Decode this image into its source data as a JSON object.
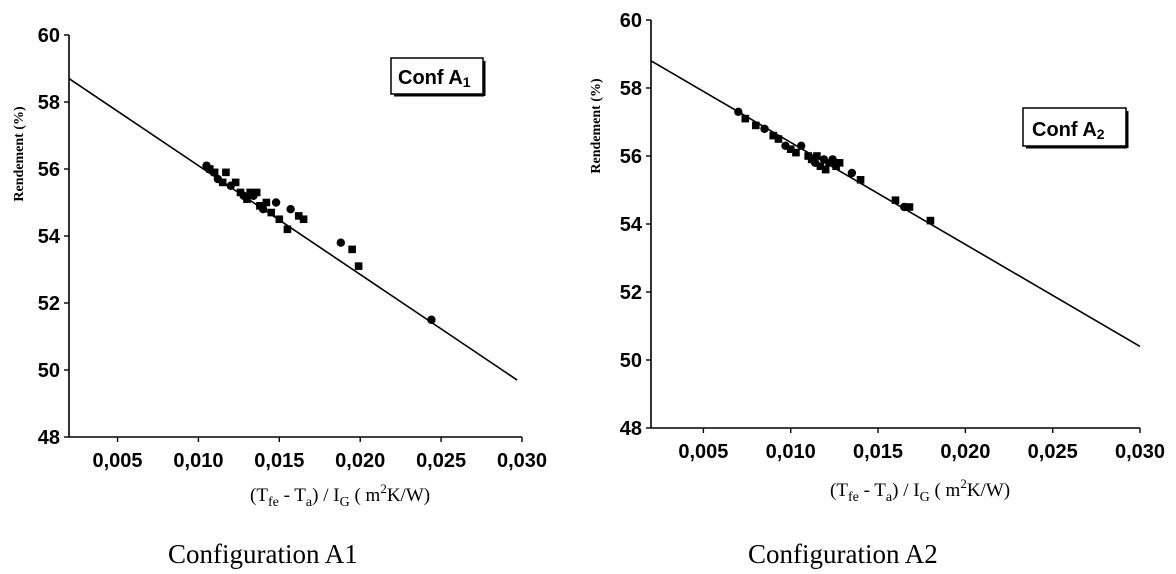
{
  "chart_data": [
    {
      "type": "scatter",
      "caption": "Configuration A1",
      "legend_box": {
        "prefix": "Conf A",
        "sub": "1"
      },
      "ylabel": "Rendement (%)",
      "xlabel": {
        "p1": "(T",
        "s1": "fe",
        "p2": " - T",
        "s2": "a",
        "p3": ") / I",
        "s3": "G",
        "p4": " ( m",
        "sup": "2",
        "p5": "K/W)"
      },
      "xlim": [
        0.002,
        0.03
      ],
      "ylim": [
        48,
        60
      ],
      "x_ticks": [
        {
          "v": 0.005,
          "label": "0,005"
        },
        {
          "v": 0.01,
          "label": "0,010"
        },
        {
          "v": 0.015,
          "label": "0,015"
        },
        {
          "v": 0.02,
          "label": "0,020"
        },
        {
          "v": 0.025,
          "label": "0,025"
        },
        {
          "v": 0.03,
          "label": "0,030"
        }
      ],
      "y_ticks": [
        {
          "v": 48,
          "label": "48"
        },
        {
          "v": 50,
          "label": "50"
        },
        {
          "v": 52,
          "label": "52"
        },
        {
          "v": 54,
          "label": "54"
        },
        {
          "v": 56,
          "label": "56"
        },
        {
          "v": 58,
          "label": "58"
        },
        {
          "v": 60,
          "label": "60"
        }
      ],
      "fit_line": {
        "x": [
          0.002,
          0.0297
        ],
        "y": [
          58.7,
          49.7
        ]
      },
      "points": [
        [
          0.0105,
          56.1
        ],
        [
          0.0107,
          56.0
        ],
        [
          0.011,
          55.9
        ],
        [
          0.0112,
          55.7
        ],
        [
          0.0115,
          55.6
        ],
        [
          0.0117,
          55.9
        ],
        [
          0.012,
          55.5
        ],
        [
          0.0123,
          55.6
        ],
        [
          0.0126,
          55.3
        ],
        [
          0.0128,
          55.2
        ],
        [
          0.013,
          55.1
        ],
        [
          0.0132,
          55.3
        ],
        [
          0.0134,
          55.2
        ],
        [
          0.0136,
          55.3
        ],
        [
          0.0138,
          54.9
        ],
        [
          0.014,
          54.8
        ],
        [
          0.0142,
          55.0
        ],
        [
          0.0145,
          54.7
        ],
        [
          0.0148,
          55.0
        ],
        [
          0.015,
          54.5
        ],
        [
          0.0155,
          54.2
        ],
        [
          0.0157,
          54.8
        ],
        [
          0.0162,
          54.6
        ],
        [
          0.0165,
          54.5
        ],
        [
          0.0188,
          53.8
        ],
        [
          0.0195,
          53.6
        ],
        [
          0.0199,
          53.1
        ],
        [
          0.0244,
          51.5
        ]
      ]
    },
    {
      "type": "scatter",
      "caption": "Configuration A2",
      "legend_box": {
        "prefix": "Conf A",
        "sub": "2"
      },
      "ylabel": "Rendement (%)",
      "xlabel": {
        "p1": "(T",
        "s1": "fe",
        "p2": " - T",
        "s2": "a",
        "p3": ") / I",
        "s3": "G",
        "p4": " ( m",
        "sup": "2",
        "p5": "K/W)"
      },
      "xlim": [
        0.002,
        0.03
      ],
      "ylim": [
        48,
        60
      ],
      "x_ticks": [
        {
          "v": 0.005,
          "label": "0,005"
        },
        {
          "v": 0.01,
          "label": "0,010"
        },
        {
          "v": 0.015,
          "label": "0,015"
        },
        {
          "v": 0.02,
          "label": "0,020"
        },
        {
          "v": 0.025,
          "label": "0,025"
        },
        {
          "v": 0.03,
          "label": "0,030"
        }
      ],
      "y_ticks": [
        {
          "v": 48,
          "label": "48"
        },
        {
          "v": 50,
          "label": "50"
        },
        {
          "v": 52,
          "label": "52"
        },
        {
          "v": 54,
          "label": "54"
        },
        {
          "v": 56,
          "label": "56"
        },
        {
          "v": 58,
          "label": "58"
        },
        {
          "v": 60,
          "label": "60"
        }
      ],
      "fit_line": {
        "x": [
          0.002,
          0.03
        ],
        "y": [
          58.8,
          50.4
        ]
      },
      "points": [
        [
          0.007,
          57.3
        ],
        [
          0.0074,
          57.1
        ],
        [
          0.008,
          56.9
        ],
        [
          0.0085,
          56.8
        ],
        [
          0.009,
          56.6
        ],
        [
          0.0093,
          56.5
        ],
        [
          0.0097,
          56.3
        ],
        [
          0.01,
          56.2
        ],
        [
          0.0103,
          56.1
        ],
        [
          0.0106,
          56.3
        ],
        [
          0.011,
          56.0
        ],
        [
          0.0112,
          55.9
        ],
        [
          0.0114,
          55.8
        ],
        [
          0.0115,
          56.0
        ],
        [
          0.0117,
          55.7
        ],
        [
          0.0119,
          55.9
        ],
        [
          0.012,
          55.6
        ],
        [
          0.0122,
          55.8
        ],
        [
          0.0124,
          55.9
        ],
        [
          0.0126,
          55.7
        ],
        [
          0.0128,
          55.8
        ],
        [
          0.0135,
          55.5
        ],
        [
          0.014,
          55.3
        ],
        [
          0.016,
          54.7
        ],
        [
          0.0165,
          54.5
        ],
        [
          0.0168,
          54.5
        ],
        [
          0.018,
          54.1
        ]
      ]
    }
  ]
}
